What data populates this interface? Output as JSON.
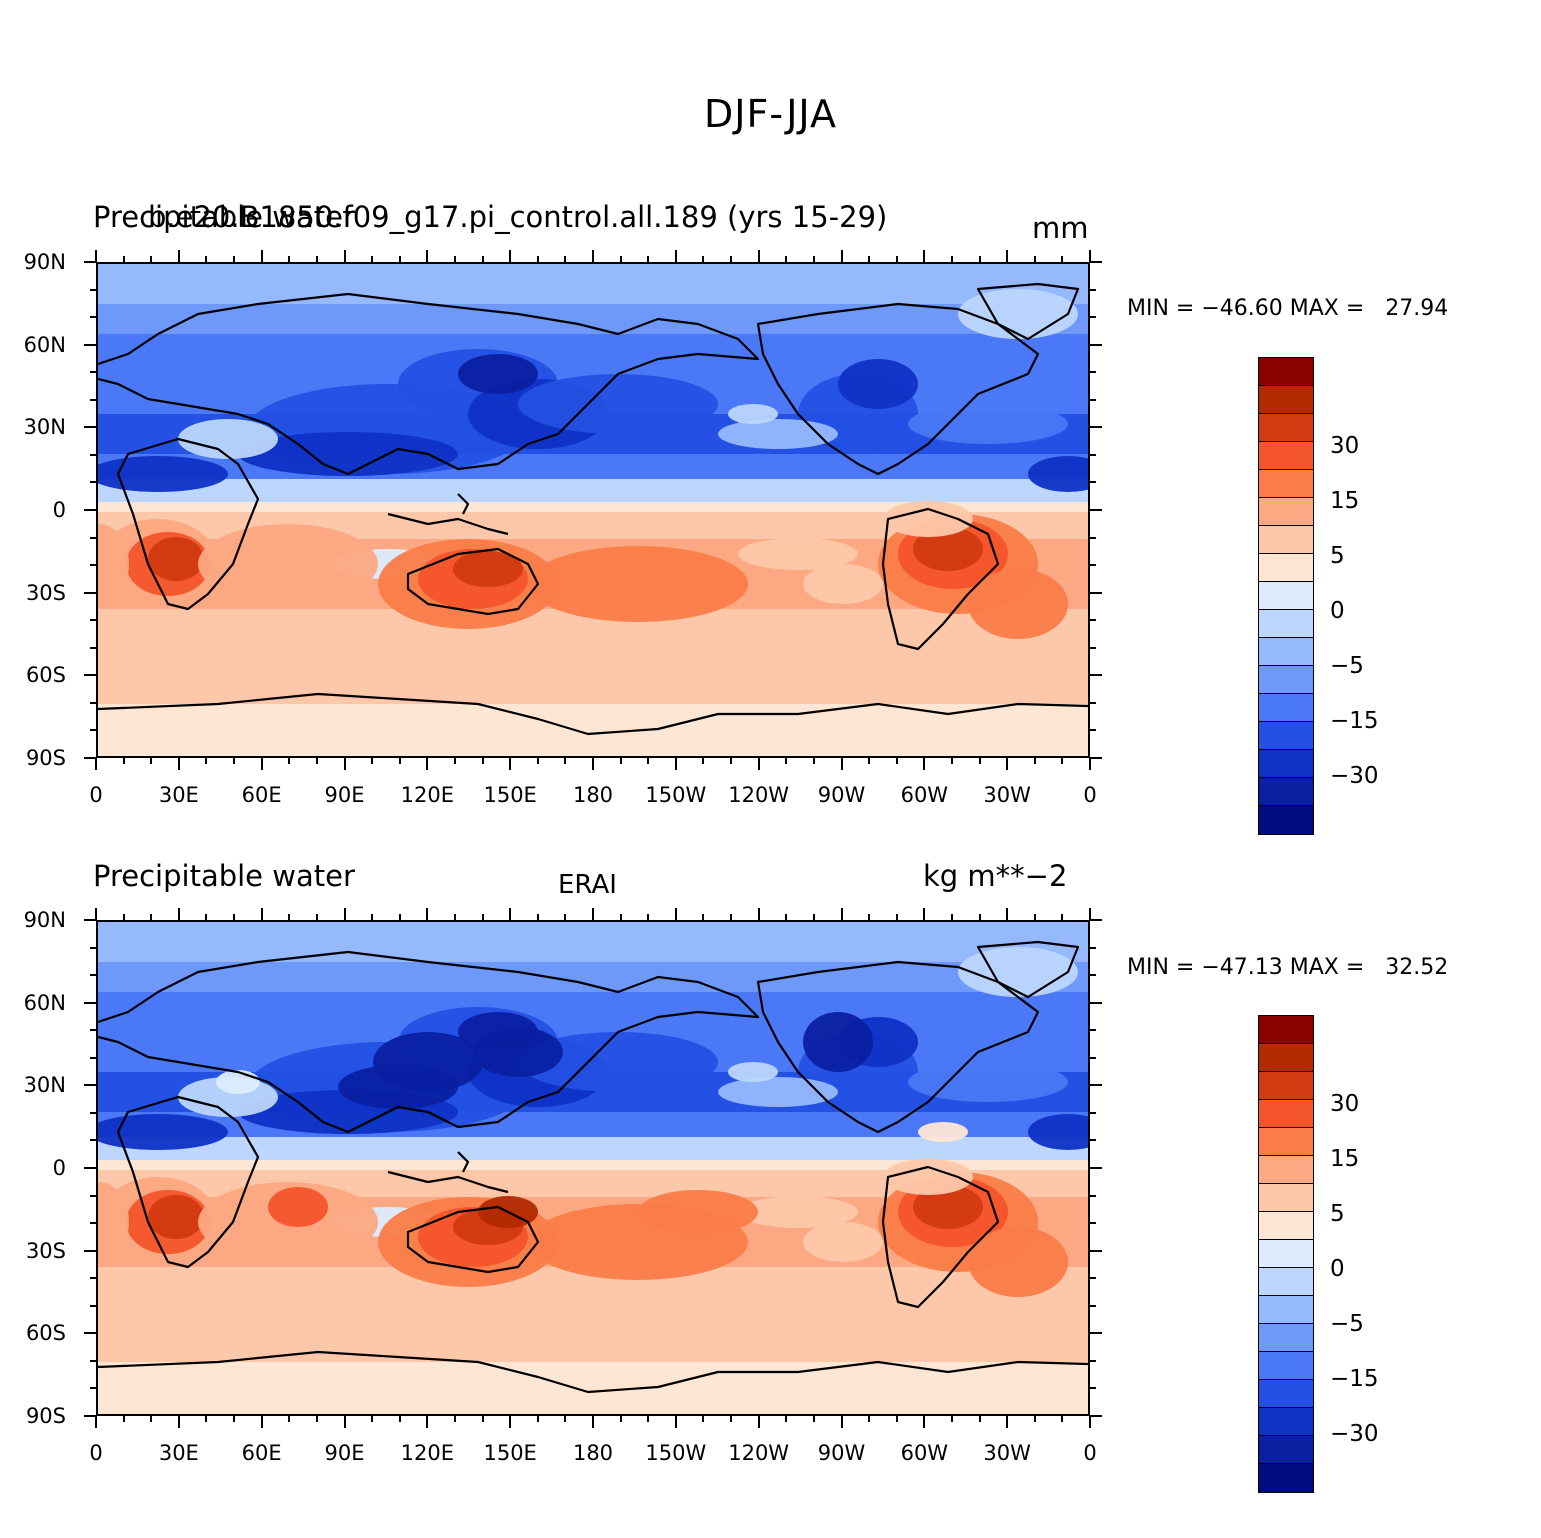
{
  "figure": {
    "title": "DJF-JJA"
  },
  "panels": [
    {
      "id": "model",
      "left_title": "Precipitable water",
      "center_title": "b.e20.B1850.f09_g17.pi_control.all.189 (yrs 15-29)",
      "right_title": "mm",
      "min_max_text": "MIN = −46.60 MAX =   27.94"
    },
    {
      "id": "obs",
      "left_title": "Precipitable water",
      "center_title": "ERAI",
      "right_title": "kg m**−2",
      "min_max_text": "MIN = −47.13 MAX =   32.52"
    }
  ],
  "axes": {
    "lat_labels": [
      "90N",
      "60N",
      "30N",
      "0",
      "30S",
      "60S",
      "90S"
    ],
    "lon_labels": [
      "0",
      "30E",
      "60E",
      "90E",
      "120E",
      "150E",
      "180",
      "150W",
      "120W",
      "90W",
      "60W",
      "30W",
      "0"
    ]
  },
  "colorbar": {
    "colors": [
      "#8b0000",
      "#b22a00",
      "#d23a12",
      "#f4542a",
      "#fa7c48",
      "#fca882",
      "#fdc8aa",
      "#fde6d4",
      "#dcecfd",
      "#bcd6fd",
      "#96b8fd",
      "#6f98fb",
      "#4a78f6",
      "#2450e4",
      "#0f32c6",
      "#0a20a2",
      "#000d82"
    ],
    "labels": [
      {
        "text": "30",
        "boundary": 2
      },
      {
        "text": "15",
        "boundary": 4
      },
      {
        "text": "5",
        "boundary": 6
      },
      {
        "text": "0",
        "boundary": 8
      },
      {
        "text": "−5",
        "boundary": 10
      },
      {
        "text": "−15",
        "boundary": 12
      },
      {
        "text": "−30",
        "boundary": 14
      }
    ]
  },
  "chart_data": {
    "type": "heatmap",
    "description_variable": "Precipitable water difference DJF minus JJA",
    "contour_levels": [
      -40,
      -35,
      -30,
      -25,
      -20,
      -15,
      -10,
      -5,
      -2,
      0,
      2,
      5,
      10,
      15,
      20,
      25,
      30,
      35
    ],
    "panels": [
      "b.e20.B1850.f09_g17.pi_control.all.189 (yrs 15-29)",
      "ERAI"
    ],
    "min": [
      -46.6,
      -47.13
    ],
    "max": [
      27.94,
      32.52
    ]
  }
}
